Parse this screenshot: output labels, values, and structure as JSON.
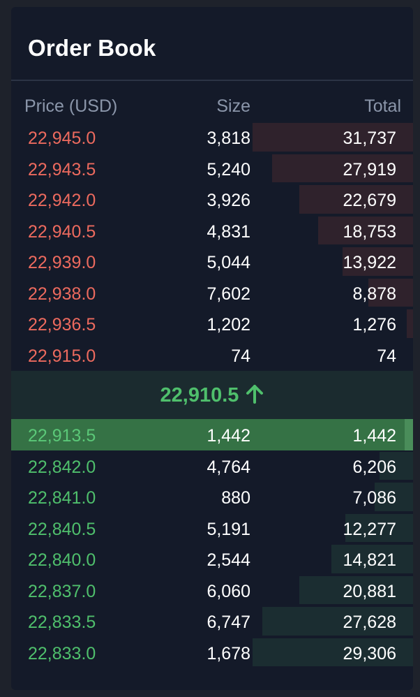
{
  "panel": {
    "title": "Order Book"
  },
  "columns": {
    "price": "Price (USD)",
    "size": "Size",
    "total": "Total"
  },
  "asks": [
    {
      "price": "22,945.0",
      "size": "3,818",
      "total": "31,737",
      "depth": 1.0
    },
    {
      "price": "22,943.5",
      "size": "5,240",
      "total": "27,919",
      "depth": 0.88
    },
    {
      "price": "22,942.0",
      "size": "3,926",
      "total": "22,679",
      "depth": 0.71
    },
    {
      "price": "22,940.5",
      "size": "4,831",
      "total": "18,753",
      "depth": 0.59
    },
    {
      "price": "22,939.0",
      "size": "5,044",
      "total": "13,922",
      "depth": 0.44
    },
    {
      "price": "22,938.0",
      "size": "7,602",
      "total": "8,878",
      "depth": 0.28
    },
    {
      "price": "22,936.5",
      "size": "1,202",
      "total": "1,276",
      "depth": 0.04
    },
    {
      "price": "22,915.0",
      "size": "74",
      "total": "74",
      "depth": 0.0
    }
  ],
  "mid_price": {
    "value": "22,910.5",
    "direction": "arrow-up-icon",
    "color": "#4fbf6c"
  },
  "bids": [
    {
      "price": "22,913.5",
      "size": "1,442",
      "total": "1,442",
      "depth": 0.05,
      "highlight": true
    },
    {
      "price": "22,842.0",
      "size": "4,764",
      "total": "6,206",
      "depth": 0.21
    },
    {
      "price": "22,841.0",
      "size": "880",
      "total": "7,086",
      "depth": 0.24
    },
    {
      "price": "22,840.5",
      "size": "5,191",
      "total": "12,277",
      "depth": 0.42
    },
    {
      "price": "22,840.0",
      "size": "2,544",
      "total": "14,821",
      "depth": 0.51
    },
    {
      "price": "22,837.0",
      "size": "6,060",
      "total": "20,881",
      "depth": 0.71
    },
    {
      "price": "22,833.5",
      "size": "6,747",
      "total": "27,628",
      "depth": 0.94
    },
    {
      "price": "22,833.0",
      "size": "1,678",
      "total": "29,306",
      "depth": 1.0
    }
  ],
  "colors": {
    "ask": "#ec6a5e",
    "bid": "#4fbf6c",
    "background": "#141a29"
  }
}
